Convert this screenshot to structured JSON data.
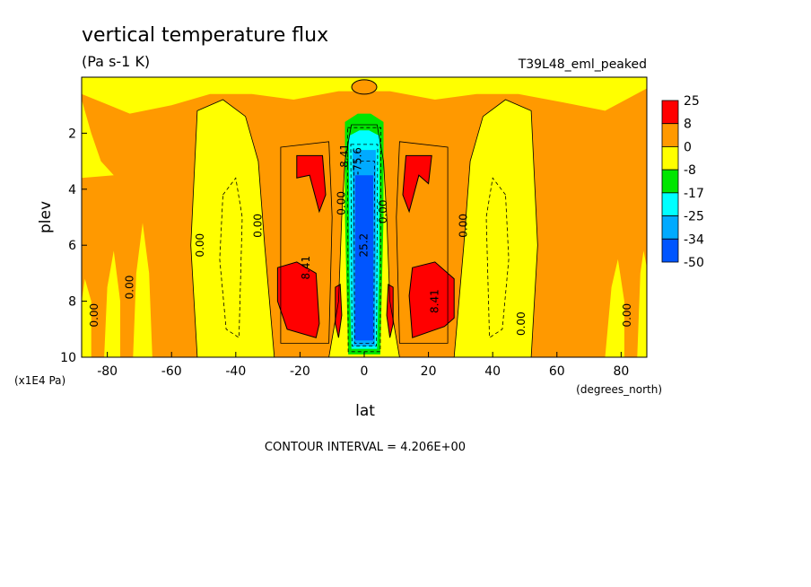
{
  "chart_data": {
    "type": "heatmap",
    "title": "vertical temperature flux",
    "units": "(Pa s-1 K)",
    "dataset": "T39L48_eml_peaked",
    "xlabel": "lat",
    "ylabel": "plev",
    "x_units": "(degrees_north)",
    "y_units": "(x1E4 Pa)",
    "xlim": [
      -88,
      88
    ],
    "ylim": [
      10,
      0
    ],
    "x_ticks": [
      -80,
      -60,
      -40,
      -20,
      0,
      20,
      40,
      60,
      80
    ],
    "y_ticks": [
      2,
      4,
      6,
      8,
      10
    ],
    "colorbar": {
      "labels": [
        "25",
        "8",
        "0",
        "-8",
        "-17",
        "-25",
        "-34",
        "-50"
      ],
      "colors": [
        "#ff0000",
        "#ff9900",
        "#ffff00",
        "#00e600",
        "#00ffff",
        "#00aaff",
        "#0055ff"
      ]
    },
    "contour_labels": [
      {
        "text": "0.00",
        "lat": -83,
        "plev": 8.5
      },
      {
        "text": "0.00",
        "lat": -72,
        "plev": 7.5
      },
      {
        "text": "0.00",
        "lat": -50,
        "plev": 6.0
      },
      {
        "text": "0.00",
        "lat": -32,
        "plev": 5.3
      },
      {
        "text": "0.00",
        "lat": -6,
        "plev": 4.5
      },
      {
        "text": "0.00",
        "lat": 7,
        "plev": 4.8
      },
      {
        "text": "0.00",
        "lat": 32,
        "plev": 5.3
      },
      {
        "text": "0.00",
        "lat": 50,
        "plev": 8.8
      },
      {
        "text": "0.00",
        "lat": 83,
        "plev": 8.5
      },
      {
        "text": "8.41",
        "lat": -17,
        "plev": 6.8
      },
      {
        "text": "8.41",
        "lat": 23,
        "plev": 8.0
      },
      {
        "text": "8.41",
        "lat": -5,
        "plev": 2.8
      },
      {
        "text": "25.2",
        "lat": 1,
        "plev": 6.0
      },
      {
        "text": "-75.6",
        "lat": -1,
        "plev": 3.0
      }
    ],
    "contour_interval_text": "CONTOUR INTERVAL = 4.206E+00",
    "grid": false
  }
}
